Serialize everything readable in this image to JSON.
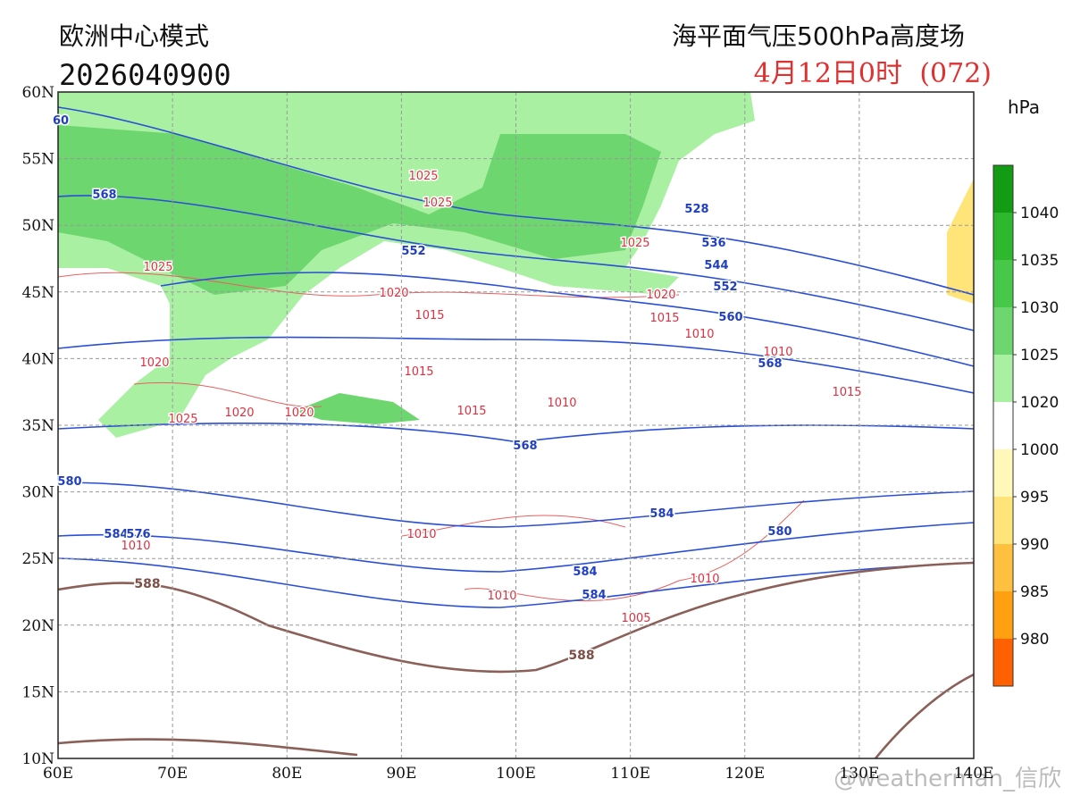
{
  "header": {
    "model": "欧洲中心模式",
    "init": "2026040900",
    "title": "海平面气压500hPa高度场",
    "valid": "4月12日0时",
    "lead": "(072)"
  },
  "map": {
    "lat_labels": [
      "60N",
      "55N",
      "50N",
      "45N",
      "40N",
      "35N",
      "30N",
      "25N",
      "20N",
      "15N",
      "10N"
    ],
    "lon_labels": [
      "60E",
      "70E",
      "80E",
      "90E",
      "100E",
      "110E",
      "120E",
      "130E",
      "140E"
    ],
    "labels_500": [
      60,
      568,
      552,
      528,
      536,
      544,
      552,
      560,
      568,
      568,
      580,
      584,
      576,
      584,
      580,
      584,
      584
    ],
    "labels_588": [
      588,
      588
    ],
    "labels_slp": [
      1025,
      1025,
      1025,
      1025,
      1020,
      1020,
      1015,
      1015,
      1010,
      1010,
      1020,
      1015,
      1015,
      1010,
      1015,
      1025,
      1020,
      1020,
      1010,
      1010,
      1010,
      1010,
      1005
    ]
  },
  "colorbar": {
    "unit": "hPa",
    "labels": [
      1040,
      1035,
      1030,
      1025,
      1020,
      1000,
      995,
      990,
      985,
      980
    ],
    "colors": [
      "#139c13",
      "#2db82d",
      "#48c848",
      "#6ed66e",
      "#aaf0a2",
      "#ffffff",
      "#fff8b8",
      "#ffe47a",
      "#ffc040",
      "#ffa010",
      "#ff6000"
    ]
  },
  "watermark": "@weatherman_信欣"
}
